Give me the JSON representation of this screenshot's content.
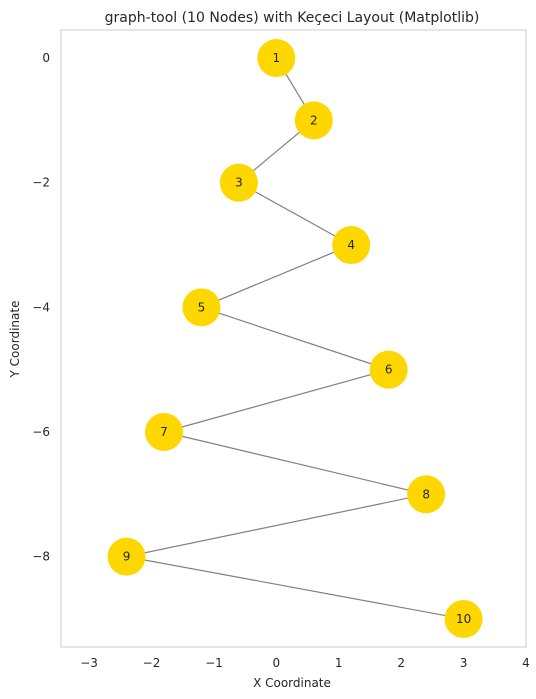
{
  "chart_data": {
    "type": "scatter",
    "title": "graph-tool (10 Nodes) with Keçeci Layout (Matplotlib)",
    "xlabel": "X Coordinate",
    "ylabel": "Y Coordinate",
    "xlim": [
      -3.45,
      4.0
    ],
    "ylim": [
      -9.45,
      0.45
    ],
    "xticks": [
      -3,
      -2,
      -1,
      0,
      1,
      2,
      3,
      4
    ],
    "yticks": [
      0,
      -2,
      -4,
      -6,
      -8
    ],
    "xtick_labels": [
      "−3",
      "−2",
      "−1",
      "0",
      "1",
      "2",
      "3",
      "4"
    ],
    "ytick_labels": [
      "0",
      "−2",
      "−4",
      "−6",
      "−8"
    ],
    "grid": false,
    "node_color": "#FFD700",
    "edge_color": "#808080",
    "nodes": [
      {
        "label": "1",
        "x": 0.0,
        "y": 0
      },
      {
        "label": "2",
        "x": 0.6,
        "y": -1
      },
      {
        "label": "3",
        "x": -0.6,
        "y": -2
      },
      {
        "label": "4",
        "x": 1.2,
        "y": -3
      },
      {
        "label": "5",
        "x": -1.2,
        "y": -4
      },
      {
        "label": "6",
        "x": 1.8,
        "y": -5
      },
      {
        "label": "7",
        "x": -1.8,
        "y": -6
      },
      {
        "label": "8",
        "x": 2.4,
        "y": -7
      },
      {
        "label": "9",
        "x": -2.4,
        "y": -8
      },
      {
        "label": "10",
        "x": 3.0,
        "y": -9
      }
    ],
    "edges": [
      [
        0,
        1
      ],
      [
        1,
        2
      ],
      [
        2,
        3
      ],
      [
        3,
        4
      ],
      [
        4,
        5
      ],
      [
        5,
        6
      ],
      [
        6,
        7
      ],
      [
        7,
        8
      ],
      [
        8,
        9
      ]
    ]
  }
}
